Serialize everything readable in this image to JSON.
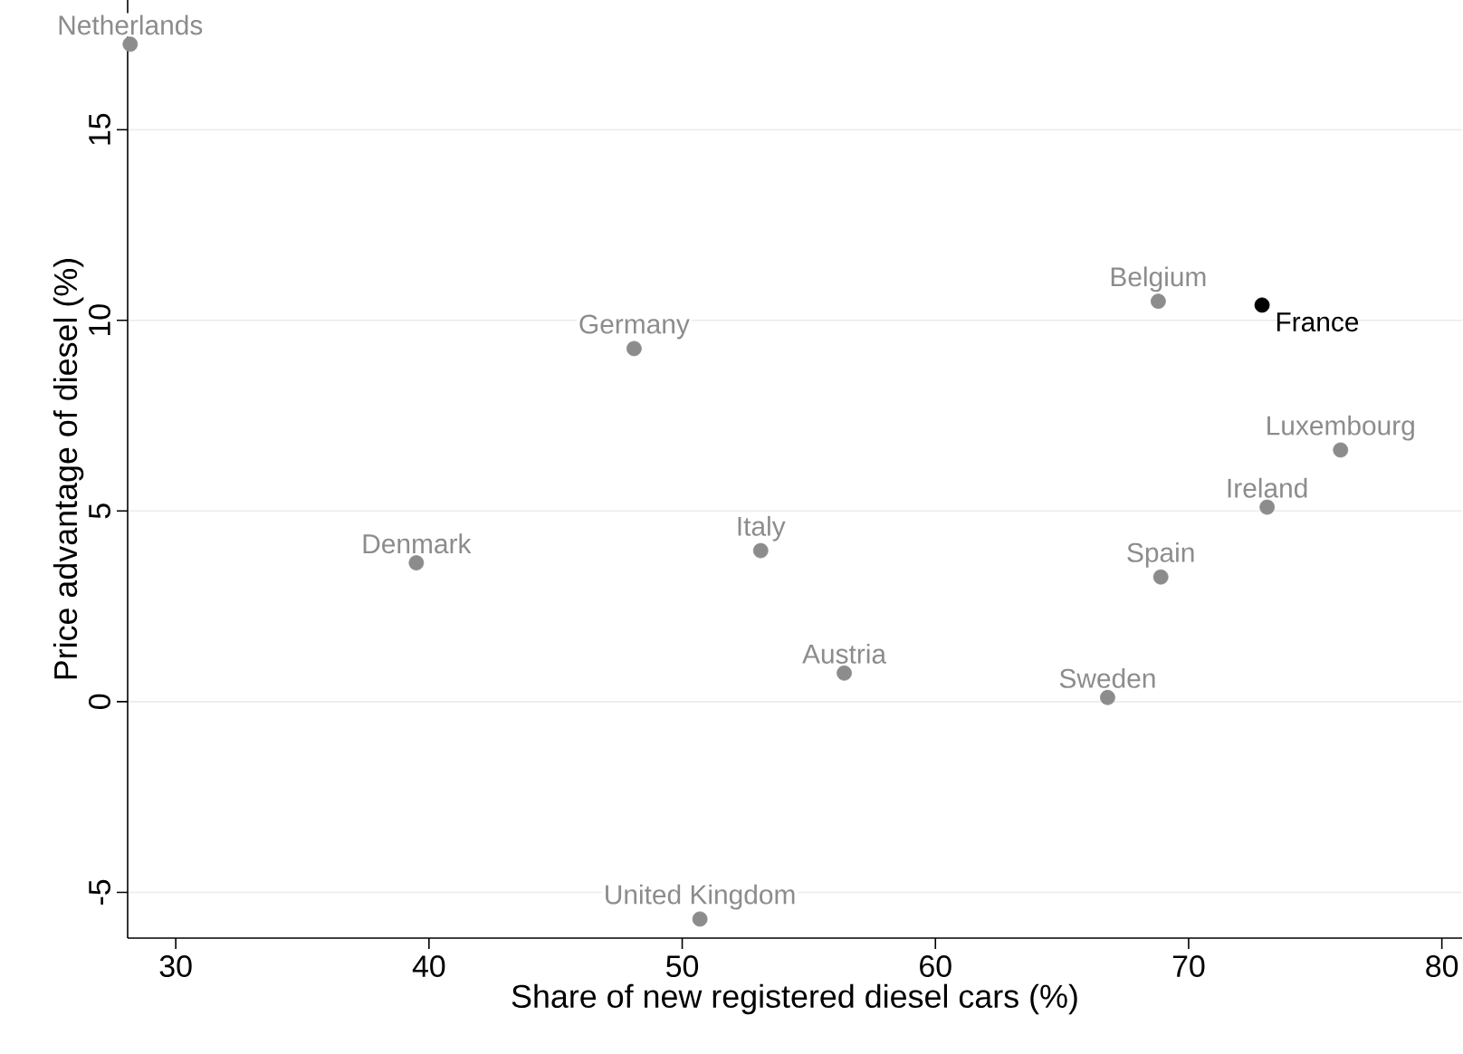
{
  "chart_data": {
    "type": "scatter",
    "xlabel": "Share of new registered diesel cars (%)",
    "ylabel": "Price advantage of diesel (%)",
    "xlim": [
      28.1,
      80.8
    ],
    "xticks": [
      30,
      40,
      50,
      60,
      70,
      80
    ],
    "ylim": [
      -6.2,
      18.4
    ],
    "yticks": [
      -5,
      0,
      5,
      10,
      15
    ],
    "grid": "y",
    "marker": "circle",
    "series": [
      {
        "color": "#8c8c8c",
        "x": [
          28.2,
          48.1,
          68.8,
          76.0,
          73.1,
          39.5,
          53.1,
          68.9,
          56.4,
          66.8,
          50.7
        ],
        "values": [
          17.24,
          9.26,
          10.5,
          6.6,
          5.1,
          3.64,
          3.96,
          3.27,
          0.75,
          0.11,
          -5.7
        ]
      },
      {
        "color": "#000000",
        "x": [
          72.9
        ],
        "values": [
          10.4
        ]
      }
    ],
    "annotations": [
      {
        "text": "Netherlands",
        "x": 28.2,
        "y": 17.24
      },
      {
        "text": "Germany",
        "x": 48.1,
        "y": 9.26
      },
      {
        "text": "Belgium",
        "x": 68.8,
        "y": 10.5
      },
      {
        "text": "France",
        "x": 72.9,
        "y": 10.4
      },
      {
        "text": "Luxembourg",
        "x": 76.0,
        "y": 6.6
      },
      {
        "text": "Ireland",
        "x": 73.1,
        "y": 5.1
      },
      {
        "text": "Denmark",
        "x": 39.5,
        "y": 3.64
      },
      {
        "text": "Italy",
        "x": 53.1,
        "y": 3.96
      },
      {
        "text": "Spain",
        "x": 68.9,
        "y": 3.27
      },
      {
        "text": "Austria",
        "x": 56.4,
        "y": 0.75
      },
      {
        "text": "Sweden",
        "x": 66.8,
        "y": 0.11
      },
      {
        "text": "United Kingdom",
        "x": 50.7,
        "y": -5.7
      }
    ]
  }
}
